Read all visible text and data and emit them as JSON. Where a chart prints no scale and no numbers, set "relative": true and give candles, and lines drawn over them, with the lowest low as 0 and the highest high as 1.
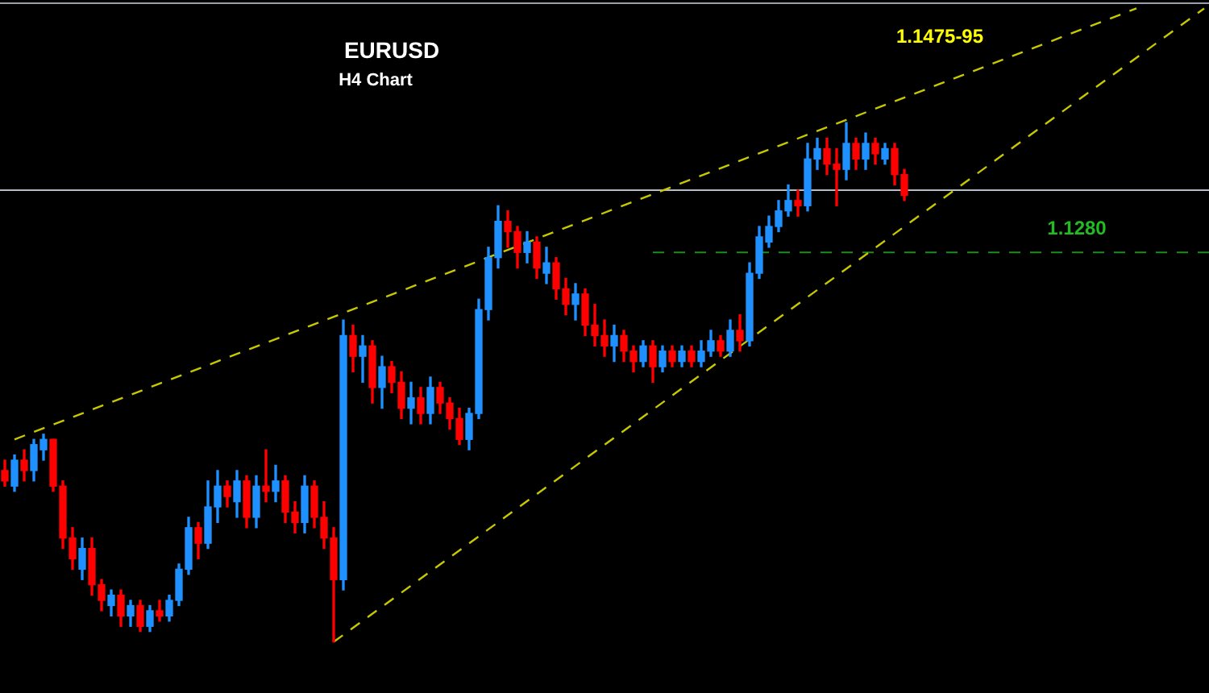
{
  "chart_data": {
    "type": "candlestick",
    "title": "EURUSD",
    "subtitle": "H4 Chart",
    "relative": true,
    "legend": false,
    "tick_labels": false,
    "categories": [
      null,
      null,
      null,
      null,
      null,
      null,
      null,
      null,
      null,
      null,
      null,
      null,
      null,
      null,
      null,
      null,
      null,
      null,
      null,
      null,
      null,
      null,
      null,
      null,
      null,
      null,
      null,
      null,
      null,
      null,
      null,
      null,
      null,
      null,
      null,
      null,
      null,
      null,
      null,
      null,
      null,
      null,
      null,
      null,
      null,
      null,
      null,
      null,
      null,
      null,
      null,
      null,
      null,
      null,
      null,
      null,
      null,
      null,
      null,
      null,
      null,
      null,
      null,
      null,
      null,
      null,
      null,
      null,
      null,
      null,
      null,
      null,
      null,
      null,
      null,
      null,
      null,
      null,
      null,
      null,
      null,
      null,
      null,
      null,
      null,
      null,
      null,
      null,
      null,
      null,
      null,
      null,
      null,
      null,
      null,
      null,
      null,
      null,
      null,
      null,
      null,
      null,
      null,
      null,
      null,
      null,
      null,
      null,
      null,
      null,
      null,
      null,
      null,
      null,
      null,
      null,
      null,
      null,
      null,
      null,
      null,
      null,
      null,
      null,
      null
    ],
    "ohlc": [
      [
        0.33,
        0.35,
        0.3,
        0.31
      ],
      [
        0.3,
        0.36,
        0.29,
        0.35
      ],
      [
        0.35,
        0.37,
        0.31,
        0.33
      ],
      [
        0.33,
        0.39,
        0.31,
        0.38
      ],
      [
        0.37,
        0.4,
        0.35,
        0.39
      ],
      [
        0.39,
        0.39,
        0.29,
        0.3
      ],
      [
        0.3,
        0.31,
        0.18,
        0.2
      ],
      [
        0.2,
        0.22,
        0.14,
        0.16
      ],
      [
        0.14,
        0.2,
        0.12,
        0.18
      ],
      [
        0.18,
        0.2,
        0.09,
        0.11
      ],
      [
        0.11,
        0.12,
        0.06,
        0.08
      ],
      [
        0.07,
        0.1,
        0.05,
        0.09
      ],
      [
        0.09,
        0.1,
        0.03,
        0.05
      ],
      [
        0.05,
        0.08,
        0.03,
        0.07
      ],
      [
        0.07,
        0.08,
        0.02,
        0.03
      ],
      [
        0.03,
        0.07,
        0.02,
        0.06
      ],
      [
        0.06,
        0.08,
        0.04,
        0.05
      ],
      [
        0.05,
        0.09,
        0.04,
        0.08
      ],
      [
        0.08,
        0.15,
        0.07,
        0.14
      ],
      [
        0.14,
        0.24,
        0.13,
        0.22
      ],
      [
        0.22,
        0.23,
        0.16,
        0.19
      ],
      [
        0.19,
        0.31,
        0.18,
        0.26
      ],
      [
        0.26,
        0.33,
        0.23,
        0.3
      ],
      [
        0.3,
        0.31,
        0.26,
        0.28
      ],
      [
        0.27,
        0.33,
        0.24,
        0.31
      ],
      [
        0.31,
        0.32,
        0.22,
        0.24
      ],
      [
        0.24,
        0.32,
        0.22,
        0.3
      ],
      [
        0.3,
        0.37,
        0.27,
        0.29
      ],
      [
        0.29,
        0.34,
        0.27,
        0.31
      ],
      [
        0.31,
        0.32,
        0.23,
        0.25
      ],
      [
        0.25,
        0.27,
        0.21,
        0.23
      ],
      [
        0.23,
        0.32,
        0.21,
        0.3
      ],
      [
        0.3,
        0.31,
        0.22,
        0.24
      ],
      [
        0.24,
        0.27,
        0.18,
        0.2
      ],
      [
        0.2,
        0.22,
        0.0,
        0.12
      ],
      [
        0.12,
        0.62,
        0.1,
        0.59
      ],
      [
        0.59,
        0.61,
        0.52,
        0.55
      ],
      [
        0.55,
        0.59,
        0.5,
        0.57
      ],
      [
        0.57,
        0.58,
        0.46,
        0.49
      ],
      [
        0.49,
        0.55,
        0.45,
        0.53
      ],
      [
        0.53,
        0.54,
        0.48,
        0.5
      ],
      [
        0.5,
        0.52,
        0.43,
        0.45
      ],
      [
        0.45,
        0.5,
        0.42,
        0.47
      ],
      [
        0.47,
        0.49,
        0.42,
        0.44
      ],
      [
        0.44,
        0.51,
        0.42,
        0.49
      ],
      [
        0.49,
        0.5,
        0.44,
        0.46
      ],
      [
        0.46,
        0.47,
        0.41,
        0.43
      ],
      [
        0.43,
        0.45,
        0.38,
        0.39
      ],
      [
        0.39,
        0.45,
        0.37,
        0.44
      ],
      [
        0.44,
        0.66,
        0.43,
        0.64
      ],
      [
        0.64,
        0.76,
        0.62,
        0.74
      ],
      [
        0.74,
        0.84,
        0.72,
        0.81
      ],
      [
        0.81,
        0.83,
        0.76,
        0.79
      ],
      [
        0.79,
        0.8,
        0.72,
        0.75
      ],
      [
        0.75,
        0.79,
        0.73,
        0.77
      ],
      [
        0.77,
        0.78,
        0.7,
        0.72
      ],
      [
        0.71,
        0.76,
        0.69,
        0.73
      ],
      [
        0.73,
        0.74,
        0.66,
        0.68
      ],
      [
        0.68,
        0.7,
        0.63,
        0.65
      ],
      [
        0.65,
        0.69,
        0.62,
        0.67
      ],
      [
        0.67,
        0.68,
        0.59,
        0.61
      ],
      [
        0.61,
        0.65,
        0.57,
        0.59
      ],
      [
        0.59,
        0.62,
        0.55,
        0.57
      ],
      [
        0.57,
        0.61,
        0.54,
        0.59
      ],
      [
        0.59,
        0.6,
        0.54,
        0.56
      ],
      [
        0.56,
        0.57,
        0.52,
        0.54
      ],
      [
        0.54,
        0.58,
        0.53,
        0.57
      ],
      [
        0.57,
        0.58,
        0.5,
        0.53
      ],
      [
        0.53,
        0.57,
        0.52,
        0.56
      ],
      [
        0.56,
        0.57,
        0.53,
        0.54
      ],
      [
        0.54,
        0.57,
        0.53,
        0.56
      ],
      [
        0.56,
        0.57,
        0.53,
        0.54
      ],
      [
        0.54,
        0.58,
        0.53,
        0.56
      ],
      [
        0.56,
        0.6,
        0.55,
        0.58
      ],
      [
        0.58,
        0.59,
        0.55,
        0.56
      ],
      [
        0.56,
        0.62,
        0.55,
        0.6
      ],
      [
        0.6,
        0.63,
        0.56,
        0.58
      ],
      [
        0.58,
        0.73,
        0.57,
        0.71
      ],
      [
        0.71,
        0.8,
        0.7,
        0.78
      ],
      [
        0.77,
        0.82,
        0.76,
        0.8
      ],
      [
        0.8,
        0.85,
        0.79,
        0.83
      ],
      [
        0.83,
        0.88,
        0.82,
        0.85
      ],
      [
        0.85,
        0.87,
        0.82,
        0.84
      ],
      [
        0.84,
        0.96,
        0.83,
        0.93
      ],
      [
        0.93,
        0.97,
        0.91,
        0.95
      ],
      [
        0.95,
        0.97,
        0.9,
        0.92
      ],
      [
        0.92,
        0.95,
        0.84,
        0.91
      ],
      [
        0.91,
        1.0,
        0.89,
        0.96
      ],
      [
        0.96,
        0.97,
        0.91,
        0.93
      ],
      [
        0.93,
        0.98,
        0.91,
        0.96
      ],
      [
        0.96,
        0.97,
        0.92,
        0.94
      ],
      [
        0.93,
        0.96,
        0.92,
        0.95
      ],
      [
        0.95,
        0.96,
        0.88,
        0.9
      ],
      [
        0.9,
        0.91,
        0.85,
        0.86
      ],
      null,
      null,
      null,
      null,
      null,
      null,
      null,
      null,
      null,
      null,
      null,
      null,
      null,
      null,
      null,
      null,
      null,
      null,
      null,
      null,
      null,
      null,
      null,
      null,
      null,
      null,
      null,
      null,
      null,
      null,
      null
    ],
    "colors": [
      "#ff0000",
      "#1e90ff",
      "#ff0000",
      "#1e90ff",
      "#1e90ff",
      "#ff0000",
      "#ff0000",
      "#ff0000",
      "#1e90ff",
      "#ff0000",
      "#ff0000",
      "#1e90ff",
      "#ff0000",
      "#1e90ff",
      "#ff0000",
      "#1e90ff",
      "#ff0000",
      "#1e90ff",
      "#1e90ff",
      "#1e90ff",
      "#ff0000",
      "#1e90ff",
      "#1e90ff",
      "#ff0000",
      "#1e90ff",
      "#ff0000",
      "#1e90ff",
      "#ff0000",
      "#1e90ff",
      "#ff0000",
      "#ff0000",
      "#1e90ff",
      "#ff0000",
      "#ff0000",
      "#ff0000",
      "#1e90ff",
      "#ff0000",
      "#1e90ff",
      "#ff0000",
      "#1e90ff",
      "#ff0000",
      "#ff0000",
      "#1e90ff",
      "#ff0000",
      "#1e90ff",
      "#ff0000",
      "#ff0000",
      "#ff0000",
      "#1e90ff",
      "#1e90ff",
      "#1e90ff",
      "#1e90ff",
      "#ff0000",
      "#ff0000",
      "#1e90ff",
      "#ff0000",
      "#1e90ff",
      "#ff0000",
      "#ff0000",
      "#1e90ff",
      "#ff0000",
      "#ff0000",
      "#ff0000",
      "#1e90ff",
      "#ff0000",
      "#ff0000",
      "#1e90ff",
      "#ff0000",
      "#1e90ff",
      "#ff0000",
      "#1e90ff",
      "#ff0000",
      "#1e90ff",
      "#1e90ff",
      "#ff0000",
      "#1e90ff",
      "#ff0000",
      "#1e90ff",
      "#1e90ff",
      "#1e90ff",
      "#1e90ff",
      "#1e90ff",
      "#ff0000",
      "#1e90ff",
      "#1e90ff",
      "#ff0000",
      "#ff0000",
      "#1e90ff",
      "#ff0000",
      "#1e90ff",
      "#ff0000",
      "#1e90ff",
      "#ff0000",
      "#ff0000",
      null,
      null,
      null,
      null,
      null,
      null,
      null,
      null,
      null,
      null,
      null,
      null,
      null,
      null,
      null,
      null,
      null,
      null,
      null,
      null,
      null,
      null,
      null,
      null,
      null,
      null,
      null,
      null,
      null,
      null,
      null
    ],
    "series": [
      {
        "type": "line",
        "color": "#c8c800",
        "line_style": "dashed",
        "values": [
          null,
          0.39,
          null,
          null,
          null,
          null,
          null,
          null,
          null,
          null,
          null,
          null,
          null,
          null,
          null,
          null,
          null,
          null,
          null,
          null,
          null,
          null,
          null,
          null,
          null,
          null,
          null,
          null,
          null,
          null,
          null,
          null,
          null,
          null,
          null,
          null,
          null,
          null,
          null,
          null,
          null,
          null,
          null,
          null,
          null,
          null,
          null,
          null,
          null,
          null,
          null,
          null,
          null,
          null,
          null,
          null,
          null,
          null,
          null,
          null,
          null,
          null,
          null,
          null,
          null,
          null,
          null,
          null,
          null,
          null,
          null,
          null,
          null,
          null,
          null,
          null,
          null,
          null,
          null,
          null,
          null,
          null,
          null,
          null,
          null,
          null,
          null,
          null,
          null,
          null,
          null,
          null,
          null,
          null,
          null,
          null,
          null,
          null,
          null,
          null,
          null,
          null,
          null,
          null,
          null,
          null,
          null,
          null,
          null,
          null,
          null,
          null,
          null,
          null,
          null,
          null,
          null,
          1.22,
          null,
          null,
          null,
          null,
          null,
          null,
          null
        ]
      },
      {
        "type": "line",
        "color": "#c8c800",
        "line_style": "dashed",
        "values": [
          null,
          null,
          null,
          null,
          null,
          null,
          null,
          null,
          null,
          null,
          null,
          null,
          null,
          null,
          null,
          null,
          null,
          null,
          null,
          null,
          null,
          null,
          null,
          null,
          null,
          null,
          null,
          null,
          null,
          null,
          null,
          null,
          null,
          null,
          0.0,
          null,
          null,
          null,
          null,
          null,
          null,
          null,
          null,
          null,
          null,
          null,
          null,
          null,
          null,
          null,
          null,
          null,
          null,
          null,
          null,
          null,
          null,
          null,
          null,
          null,
          null,
          null,
          null,
          null,
          null,
          null,
          null,
          null,
          null,
          null,
          null,
          null,
          null,
          null,
          null,
          null,
          null,
          null,
          null,
          null,
          null,
          null,
          null,
          null,
          null,
          null,
          null,
          null,
          null,
          null,
          null,
          null,
          null,
          null,
          null,
          null,
          null,
          null,
          null,
          null,
          null,
          null,
          null,
          null,
          null,
          null,
          null,
          null,
          null,
          null,
          null,
          null,
          null,
          null,
          null,
          null,
          null,
          null,
          null,
          null,
          null,
          null,
          null,
          null,
          1.22
        ]
      }
    ],
    "ref_lines": [
      {
        "axis": "y",
        "value": 0.87,
        "color": "#b4bccb",
        "line_style": "solid"
      },
      {
        "axis": "y",
        "value": 1.23,
        "color": "#9aa0aa",
        "line_style": "solid"
      },
      {
        "axis": "y",
        "value": 0.75,
        "color": "#1f8a1f",
        "line_style": "dashed"
      }
    ],
    "annotations": [
      "1.1475-95",
      "1.1280"
    ]
  }
}
